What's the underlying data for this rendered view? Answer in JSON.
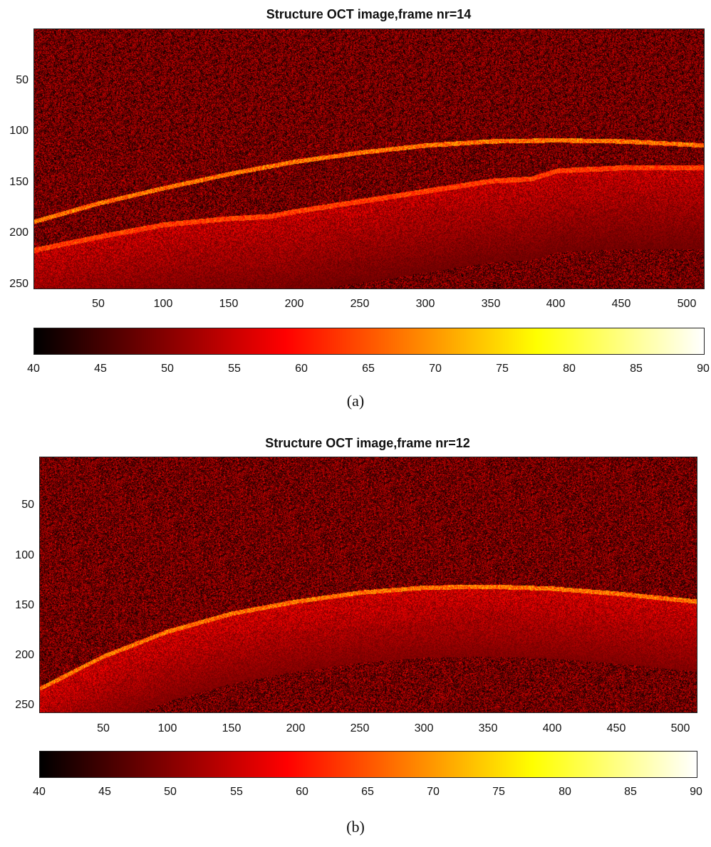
{
  "chart_data": [
    {
      "type": "heatmap",
      "title": "Structure OCT image,frame nr=14",
      "caption": "(a)",
      "xlim": [
        1,
        512
      ],
      "ylim": [
        1,
        256
      ],
      "x_ticks": [
        "50",
        "100",
        "150",
        "200",
        "250",
        "300",
        "350",
        "400",
        "450",
        "500"
      ],
      "y_ticks": [
        "50",
        "100",
        "150",
        "200",
        "250"
      ],
      "colormap": "hot",
      "colorbar_range": [
        40,
        90
      ],
      "colorbar_ticks": [
        "40",
        "45",
        "50",
        "55",
        "60",
        "65",
        "70",
        "75",
        "80",
        "85",
        "90"
      ],
      "surface_layer": {
        "x": [
          1,
          50,
          100,
          150,
          200,
          250,
          300,
          350,
          400,
          450,
          512
        ],
        "y": [
          190,
          172,
          157,
          143,
          131,
          122,
          115,
          111,
          110,
          111,
          115
        ]
      },
      "lower_layer": {
        "x": [
          1,
          50,
          100,
          150,
          180,
          200,
          250,
          300,
          350,
          380,
          400,
          450,
          512
        ],
        "y": [
          218,
          205,
          193,
          187,
          185,
          180,
          170,
          160,
          150,
          148,
          140,
          137,
          137
        ]
      }
    },
    {
      "type": "heatmap",
      "title": "Structure OCT image,frame nr=12",
      "caption": "(b)",
      "xlim": [
        1,
        512
      ],
      "ylim": [
        1,
        256
      ],
      "x_ticks": [
        "50",
        "100",
        "150",
        "200",
        "250",
        "300",
        "350",
        "400",
        "450",
        "500"
      ],
      "y_ticks": [
        "50",
        "100",
        "150",
        "200",
        "250"
      ],
      "colormap": "hot",
      "colorbar_range": [
        40,
        90
      ],
      "colorbar_ticks": [
        "40",
        "45",
        "50",
        "55",
        "60",
        "65",
        "70",
        "75",
        "80",
        "85",
        "90"
      ],
      "surface_layer": {
        "x": [
          1,
          50,
          100,
          150,
          200,
          250,
          300,
          350,
          400,
          450,
          512
        ],
        "y": [
          232,
          200,
          175,
          157,
          145,
          136,
          131,
          130,
          132,
          137,
          145
        ]
      }
    }
  ]
}
